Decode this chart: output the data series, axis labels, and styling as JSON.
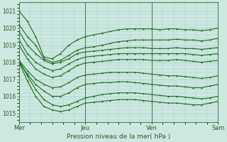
{
  "xlabel": "Pression niveau de la mer( hPa )",
  "ylim": [
    1014.5,
    1021.5
  ],
  "yticks": [
    1015,
    1016,
    1017,
    1018,
    1019,
    1020,
    1021
  ],
  "xtick_labels": [
    "Mer",
    "Jeu",
    "Ven",
    "Sam"
  ],
  "xtick_positions": [
    0,
    8,
    16,
    24
  ],
  "bg_color": "#cce8e0",
  "grid_color": "#aacccc",
  "line_color": "#1a6b1a",
  "marker": "+",
  "linewidth": 0.8,
  "series": [
    [
      1021.0,
      1020.4,
      1019.5,
      1018.3,
      1018.2,
      1018.5,
      1019.0,
      1019.3,
      1019.5,
      1019.6,
      1019.7,
      1019.8,
      1019.9,
      1019.95,
      1019.95,
      1019.95,
      1019.95,
      1019.9,
      1019.95,
      1019.95,
      1019.9,
      1019.9,
      1019.85,
      1019.9,
      1020.0
    ],
    [
      1020.2,
      1019.5,
      1019.0,
      1018.2,
      1018.0,
      1018.1,
      1018.4,
      1018.7,
      1018.85,
      1018.9,
      1019.0,
      1019.1,
      1019.2,
      1019.25,
      1019.3,
      1019.3,
      1019.3,
      1019.3,
      1019.3,
      1019.35,
      1019.3,
      1019.3,
      1019.25,
      1019.3,
      1019.4
    ],
    [
      1019.8,
      1019.0,
      1018.5,
      1018.1,
      1017.9,
      1018.0,
      1018.2,
      1018.5,
      1018.6,
      1018.65,
      1018.7,
      1018.75,
      1018.8,
      1018.85,
      1018.85,
      1018.85,
      1018.8,
      1018.8,
      1018.8,
      1018.85,
      1018.8,
      1018.8,
      1018.75,
      1018.8,
      1018.85
    ],
    [
      1019.3,
      1018.5,
      1018.0,
      1017.7,
      1017.5,
      1017.6,
      1017.9,
      1018.15,
      1018.3,
      1018.35,
      1018.4,
      1018.45,
      1018.5,
      1018.5,
      1018.5,
      1018.5,
      1018.5,
      1018.5,
      1018.5,
      1018.5,
      1018.5,
      1018.45,
      1018.4,
      1018.45,
      1018.5
    ],
    [
      1019.0,
      1018.2,
      1017.6,
      1017.3,
      1017.1,
      1017.2,
      1017.5,
      1017.8,
      1017.95,
      1018.0,
      1018.05,
      1018.1,
      1018.15,
      1018.15,
      1018.15,
      1018.15,
      1018.1,
      1018.1,
      1018.1,
      1018.15,
      1018.1,
      1018.05,
      1018.0,
      1018.05,
      1018.1
    ],
    [
      1018.1,
      1017.5,
      1017.0,
      1016.7,
      1016.5,
      1016.55,
      1016.8,
      1017.1,
      1017.25,
      1017.3,
      1017.35,
      1017.4,
      1017.4,
      1017.4,
      1017.4,
      1017.35,
      1017.3,
      1017.25,
      1017.2,
      1017.2,
      1017.15,
      1017.1,
      1017.05,
      1017.1,
      1017.2
    ],
    [
      1018.0,
      1017.3,
      1016.7,
      1016.3,
      1016.0,
      1016.0,
      1016.2,
      1016.5,
      1016.7,
      1016.75,
      1016.8,
      1016.8,
      1016.85,
      1016.85,
      1016.8,
      1016.75,
      1016.7,
      1016.65,
      1016.6,
      1016.6,
      1016.55,
      1016.5,
      1016.5,
      1016.6,
      1016.7
    ],
    [
      1018.1,
      1017.2,
      1016.4,
      1015.8,
      1015.5,
      1015.4,
      1015.5,
      1015.7,
      1015.9,
      1016.0,
      1016.1,
      1016.15,
      1016.2,
      1016.2,
      1016.2,
      1016.15,
      1016.1,
      1016.05,
      1016.0,
      1016.0,
      1015.95,
      1015.9,
      1015.85,
      1015.9,
      1016.0
    ],
    [
      1018.0,
      1016.9,
      1016.0,
      1015.4,
      1015.2,
      1015.1,
      1015.2,
      1015.4,
      1015.6,
      1015.65,
      1015.7,
      1015.75,
      1015.8,
      1015.8,
      1015.8,
      1015.75,
      1015.7,
      1015.65,
      1015.6,
      1015.6,
      1015.55,
      1015.5,
      1015.5,
      1015.6,
      1015.7
    ]
  ]
}
